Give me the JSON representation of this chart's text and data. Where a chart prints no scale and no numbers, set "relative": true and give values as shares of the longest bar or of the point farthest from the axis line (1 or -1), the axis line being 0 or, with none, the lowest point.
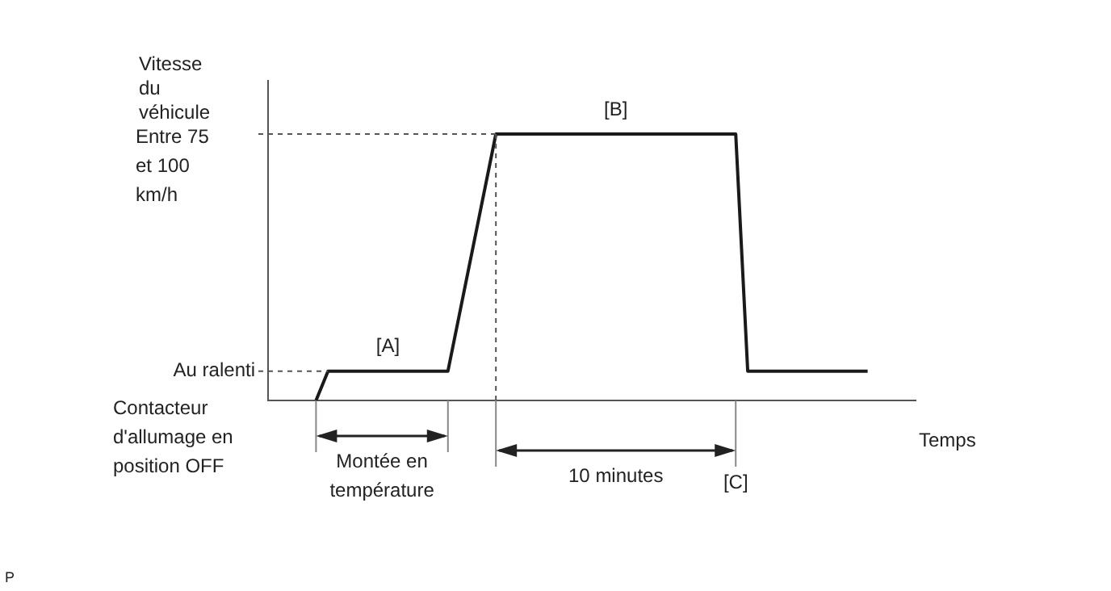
{
  "chart_data": {
    "type": "line",
    "relative": true,
    "tick_labels": false,
    "xlabel": "Temps",
    "ylabel": "Vitesse du véhicule",
    "categories": [
      null,
      null,
      null,
      null,
      null,
      null,
      null,
      null,
      null,
      null,
      null,
      null,
      null,
      null,
      null,
      null,
      null,
      null,
      null,
      null,
      null,
      null,
      null,
      null,
      null,
      null,
      null,
      null,
      null,
      null,
      null,
      null,
      null,
      null,
      null,
      null,
      null,
      null,
      null,
      null,
      null,
      null,
      null,
      null,
      null,
      null,
      null,
      null,
      null,
      null,
      null,
      null,
      null,
      null,
      null
    ],
    "series": [
      {
        "color": "#1a1a1a",
        "values": [
          null,
          null,
          null,
          null,
          0,
          0.11,
          null,
          null,
          null,
          null,
          null,
          null,
          null,
          null,
          null,
          0.11,
          null,
          null,
          null,
          1,
          null,
          null,
          null,
          null,
          null,
          null,
          null,
          null,
          null,
          null,
          null,
          null,
          null,
          null,
          null,
          null,
          null,
          null,
          null,
          1,
          0.11,
          null,
          null,
          null,
          null,
          null,
          null,
          null,
          null,
          null,
          0.11,
          null,
          null,
          null,
          null
        ]
      }
    ],
    "ref_lines": [
      {
        "axis": "y",
        "value": 0.11,
        "label": "Au ralenti",
        "line_style": "dashed",
        "color": "#555555"
      },
      {
        "axis": "y",
        "value": 1,
        "label": "Entre 75 et 100 km/h",
        "line_style": "dashed",
        "color": "#555555"
      }
    ],
    "annotations": [
      {
        "text": "[A]",
        "y": 0.11
      },
      {
        "text": "[B]",
        "y": 1
      },
      "Montée en température",
      "10 minutes",
      "[C]",
      "Contacteur d'allumage en position OFF",
      "P"
    ]
  }
}
